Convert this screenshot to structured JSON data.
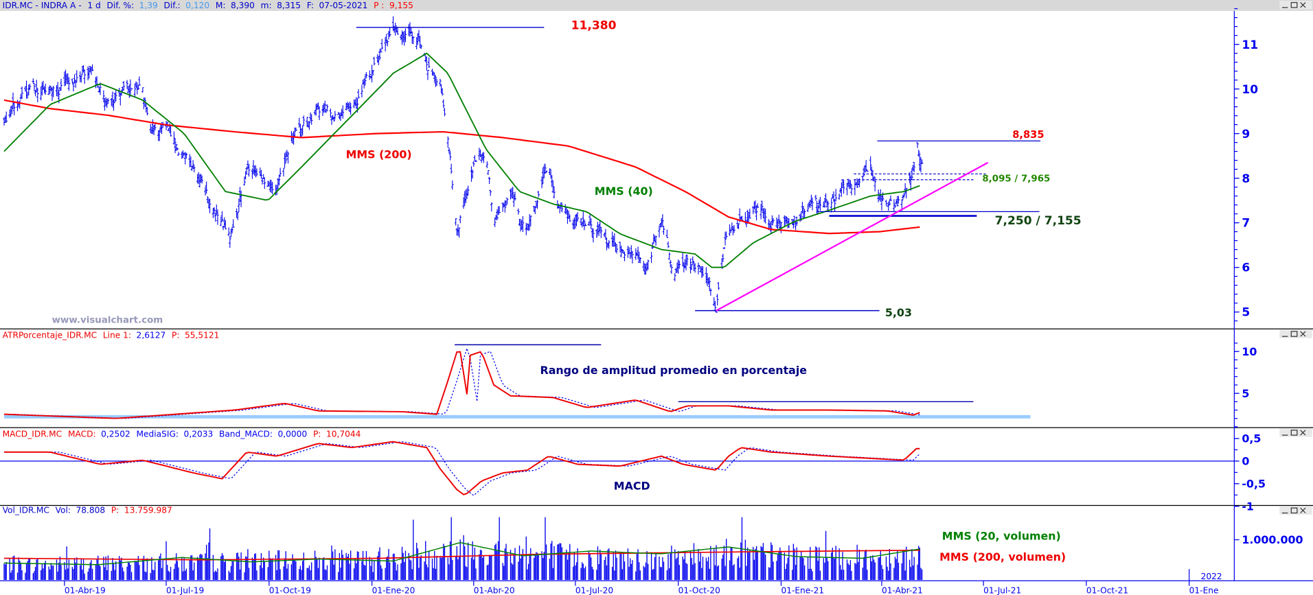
{
  "header": {
    "symbol": "IDR.MC - INDRA A -",
    "period": "1 d",
    "dif_pct_label": "Dif. %:",
    "dif_pct": "1,39",
    "dif_label": "Dif.:",
    "dif": "0,120",
    "max_label": "M:",
    "max": "8,390",
    "min_label": "m:",
    "min": "8,315",
    "date_label": "F:",
    "date": "07-05-2021",
    "p_label": "P :",
    "p": "9,155"
  },
  "watermark": "www.visualchart.com",
  "window_buttons": {
    "minimize": "minimize-icon",
    "maximize": "maximize-icon",
    "close": "close-icon"
  },
  "colors": {
    "price": "#0000ee",
    "mms200": "#ff0000",
    "mms40": "#008000",
    "trend": "#ff00ff",
    "band": "#99ccff"
  },
  "chart_data": [
    {
      "type": "line",
      "title": "IDR.MC - INDRA A",
      "ylim": [
        4.8,
        11.7
      ],
      "yticks": [
        "5",
        "6",
        "7",
        "8",
        "9",
        "10",
        "11"
      ],
      "price_series": [
        [
          "2019-02-06",
          9.2
        ],
        [
          "2019-03-04",
          10.0
        ],
        [
          "2019-03-27",
          9.9
        ],
        [
          "2019-04-26",
          10.5
        ],
        [
          "2019-05-07",
          9.9
        ],
        [
          "2019-06-10",
          9.9
        ],
        [
          "2019-06-17",
          8.9
        ],
        [
          "2019-07-02",
          9.0
        ],
        [
          "2019-07-25",
          8.25
        ],
        [
          "2019-08-12",
          7.1
        ],
        [
          "2019-08-27",
          6.75
        ],
        [
          "2019-09-11",
          8.2
        ],
        [
          "2019-10-08",
          7.7
        ],
        [
          "2019-10-22",
          8.85
        ],
        [
          "2019-11-14",
          9.55
        ],
        [
          "2019-12-06",
          9.35
        ],
        [
          "2019-12-29",
          10.3
        ],
        [
          "2020-01-20",
          11.25
        ],
        [
          "2020-02-12",
          11.2
        ],
        [
          "2020-02-19",
          10.5
        ],
        [
          "2020-03-02",
          10.3
        ],
        [
          "2020-03-09",
          8.8
        ],
        [
          "2020-03-17",
          6.95
        ],
        [
          "2020-04-01",
          8.25
        ],
        [
          "2020-04-12",
          8.6
        ],
        [
          "2020-04-19",
          6.9
        ],
        [
          "2020-05-04",
          7.65
        ],
        [
          "2020-05-19",
          6.7
        ],
        [
          "2020-06-07",
          8.2
        ],
        [
          "2020-06-14",
          7.5
        ],
        [
          "2020-07-03",
          7.1
        ],
        [
          "2020-07-26",
          6.7
        ],
        [
          "2020-08-17",
          6.3
        ],
        [
          "2020-09-01",
          6.0
        ],
        [
          "2020-09-16",
          6.95
        ],
        [
          "2020-09-27",
          6.0
        ],
        [
          "2020-10-16",
          6.2
        ],
        [
          "2020-10-27",
          5.65
        ],
        [
          "2020-11-04",
          5.05
        ],
        [
          "2020-11-13",
          6.6
        ],
        [
          "2020-11-22",
          7.0
        ],
        [
          "2020-12-11",
          7.25
        ],
        [
          "2020-12-30",
          6.95
        ],
        [
          "2021-01-21",
          7.35
        ],
        [
          "2021-02-13",
          7.55
        ],
        [
          "2021-02-28",
          7.65
        ],
        [
          "2021-03-22",
          8.1
        ],
        [
          "2021-04-03",
          7.5
        ],
        [
          "2021-04-21",
          7.5
        ],
        [
          "2021-04-29",
          8.05
        ],
        [
          "2021-05-03",
          8.8
        ],
        [
          "2021-05-07",
          8.39
        ]
      ],
      "mms40": {
        "label": "MMS (40)",
        "points": [
          [
            "2019-02-06",
            8.6
          ],
          [
            "2019-03-19",
            9.65
          ],
          [
            "2019-05-03",
            10.12
          ],
          [
            "2019-06-10",
            9.75
          ],
          [
            "2019-07-17",
            9.0
          ],
          [
            "2019-08-23",
            7.7
          ],
          [
            "2019-09-30",
            7.5
          ],
          [
            "2019-10-30",
            8.25
          ],
          [
            "2019-12-14",
            9.4
          ],
          [
            "2020-01-20",
            10.35
          ],
          [
            "2020-02-19",
            10.8
          ],
          [
            "2020-03-09",
            10.35
          ],
          [
            "2020-03-28",
            9.4
          ],
          [
            "2020-04-12",
            8.65
          ],
          [
            "2020-05-12",
            7.7
          ],
          [
            "2020-06-11",
            7.42
          ],
          [
            "2020-07-11",
            7.25
          ],
          [
            "2020-08-10",
            6.75
          ],
          [
            "2020-09-16",
            6.4
          ],
          [
            "2020-10-16",
            6.3
          ],
          [
            "2020-10-31",
            6.0
          ],
          [
            "2020-11-11",
            6.0
          ],
          [
            "2020-12-07",
            6.55
          ],
          [
            "2021-01-13",
            7.03
          ],
          [
            "2021-02-13",
            7.28
          ],
          [
            "2021-03-22",
            7.6
          ],
          [
            "2021-04-21",
            7.7
          ],
          [
            "2021-05-07",
            7.85
          ]
        ]
      },
      "mms200": {
        "label": "MMS (200)",
        "points": [
          [
            "2019-02-06",
            9.75
          ],
          [
            "2019-03-19",
            9.56
          ],
          [
            "2019-05-10",
            9.41
          ],
          [
            "2019-07-02",
            9.19
          ],
          [
            "2019-08-31",
            9.04
          ],
          [
            "2019-10-30",
            8.91
          ],
          [
            "2020-01-05",
            9.0
          ],
          [
            "2020-03-05",
            9.04
          ],
          [
            "2020-04-27",
            8.91
          ],
          [
            "2020-06-25",
            8.72
          ],
          [
            "2020-08-24",
            8.25
          ],
          [
            "2020-10-08",
            7.69
          ],
          [
            "2020-11-15",
            7.13
          ],
          [
            "2020-12-23",
            6.85
          ],
          [
            "2021-02-13",
            6.76
          ],
          [
            "2021-03-30",
            6.8
          ],
          [
            "2021-05-07",
            6.91
          ]
        ]
      },
      "annotations": {
        "high": {
          "label": "11,380",
          "value": 11.38,
          "from": "2019-12-18",
          "to": "2020-06-03"
        },
        "resistance": {
          "label": "8,835",
          "value": 8.835,
          "from": "2021-03-28",
          "to": "2021-08-21"
        },
        "gap": {
          "label": "8,095 / 7,965",
          "upper": 8.095,
          "lower": 7.965,
          "from": "2021-03-07",
          "upper_to": "2021-07-03",
          "lower_to": "2021-06-22"
        },
        "support": {
          "label": "7,250 / 7,155",
          "upper": 7.25,
          "lower": 7.155,
          "upper_from": "2021-02-02",
          "upper_to": "2021-08-20",
          "lower_from": "2021-02-13",
          "lower_to": "2021-06-25"
        },
        "low": {
          "label": "5,03",
          "value": 5.03,
          "from": "2020-10-16",
          "to": "2021-03-30"
        },
        "trendline": {
          "from": [
            "2020-11-04",
            5.03
          ],
          "to": [
            "2021-07-05",
            8.35
          ]
        }
      }
    },
    {
      "type": "line",
      "title": "ATRPorcentaje_IDR.MC",
      "header": {
        "name": "ATRPorcentaje_IDR.MC",
        "line_label": "Line 1:",
        "line_value": "2,6127",
        "p_label": "P:",
        "p_value": "55,5121"
      },
      "annotation_text": "Rango de amplitud promedio en porcentaje",
      "yticks": [
        "5",
        "10"
      ],
      "series": [
        [
          "2019-02-06",
          2.5
        ],
        [
          "2019-05-17",
          2.0
        ],
        [
          "2019-08-31",
          3.0
        ],
        [
          "2019-10-15",
          3.8
        ],
        [
          "2019-11-14",
          2.9
        ],
        [
          "2020-01-28",
          2.8
        ],
        [
          "2020-02-28",
          2.5
        ],
        [
          "2020-03-28",
          3.2
        ],
        [
          "2020-03-09",
          6.5
        ],
        [
          "2020-03-19",
          10.8
        ],
        [
          "2020-03-28",
          9.5
        ],
        [
          "2020-04-08",
          10.0
        ],
        [
          "2020-04-19",
          6.0
        ],
        [
          "2020-05-04",
          4.7
        ],
        [
          "2020-06-11",
          4.5
        ],
        [
          "2020-07-11",
          3.3
        ],
        [
          "2020-08-24",
          4.2
        ],
        [
          "2020-09-24",
          2.8
        ],
        [
          "2020-10-09",
          3.5
        ],
        [
          "2020-11-15",
          3.5
        ],
        [
          "2020-12-23",
          3.0
        ],
        [
          "2021-02-13",
          3.0
        ],
        [
          "2021-04-06",
          2.9
        ],
        [
          "2021-04-29",
          2.4
        ],
        [
          "2021-05-07",
          2.8
        ]
      ],
      "lines": {
        "peak": {
          "value": 10.8,
          "from": "2020-03-15",
          "to": "2020-07-24"
        },
        "range": {
          "value": 4.0,
          "from": "2020-10-01",
          "to": "2021-06-22"
        },
        "floor": {
          "value": 2.2,
          "from": "2019-02-06",
          "to": "2021-08-12"
        }
      }
    },
    {
      "type": "line",
      "title": "MACD_IDR.MC",
      "header": {
        "name": "MACD_IDR.MC",
        "macd_label": "MACD:",
        "macd_value": "0,2502",
        "sig_label": "MediaSIG:",
        "sig_value": "0,2033",
        "band_label": "Band_MACD:",
        "band_value": "0,0000",
        "p_label": "P:",
        "p_value": "10,7044"
      },
      "annotation_text": "MACD",
      "yticks": [
        "0,5",
        "0",
        "-0,5",
        "-1"
      ],
      "series": [
        [
          "2019-02-06",
          0.2
        ],
        [
          "2019-03-19",
          0.2
        ],
        [
          "2019-05-03",
          -0.07
        ],
        [
          "2019-06-10",
          0.02
        ],
        [
          "2019-07-25",
          -0.26
        ],
        [
          "2019-08-20",
          -0.39
        ],
        [
          "2019-09-11",
          0.2
        ],
        [
          "2019-10-08",
          0.11
        ],
        [
          "2019-11-14",
          0.39
        ],
        [
          "2019-12-14",
          0.3
        ],
        [
          "2020-01-20",
          0.43
        ],
        [
          "2020-02-19",
          0.3
        ],
        [
          "2020-03-02",
          -0.17
        ],
        [
          "2020-03-17",
          -0.63
        ],
        [
          "2020-03-24",
          -0.76
        ],
        [
          "2020-04-08",
          -0.44
        ],
        [
          "2020-04-27",
          -0.26
        ],
        [
          "2020-05-19",
          -0.2
        ],
        [
          "2020-06-07",
          0.11
        ],
        [
          "2020-07-03",
          -0.07
        ],
        [
          "2020-08-10",
          -0.11
        ],
        [
          "2020-09-16",
          0.11
        ],
        [
          "2020-10-05",
          -0.07
        ],
        [
          "2020-11-04",
          -0.2
        ],
        [
          "2020-11-15",
          0.11
        ],
        [
          "2020-11-26",
          0.3
        ],
        [
          "2020-12-23",
          0.2
        ],
        [
          "2021-02-13",
          0.11
        ],
        [
          "2021-03-30",
          0.05
        ],
        [
          "2021-04-21",
          0.02
        ],
        [
          "2021-05-03",
          0.3
        ],
        [
          "2021-05-07",
          0.25
        ]
      ]
    },
    {
      "type": "bar",
      "title": "Vol_IDR.MC",
      "header": {
        "name": "Vol_IDR.MC",
        "vol_label": "Vol:",
        "vol_value": "78.808",
        "p_label": "P:",
        "p_value": "13.759.987"
      },
      "yticks": [
        "1.000.000"
      ],
      "volume_profile": [
        [
          "2019-02-06",
          420000
        ],
        [
          "2019-06-01",
          460000
        ],
        [
          "2019-09-15",
          520000
        ],
        [
          "2020-01-10",
          560000
        ],
        [
          "2020-03-15",
          850000
        ],
        [
          "2020-06-15",
          680000
        ],
        [
          "2020-09-15",
          580000
        ],
        [
          "2020-11-10",
          760000
        ],
        [
          "2021-02-10",
          600000
        ],
        [
          "2021-05-07",
          680000
        ]
      ],
      "mms20": {
        "label": "MMS (20, volumen)",
        "points": [
          [
            "2019-02-06",
            420000
          ],
          [
            "2019-05-01",
            380000
          ],
          [
            "2019-07-15",
            560000
          ],
          [
            "2019-09-15",
            450000
          ],
          [
            "2019-11-15",
            520000
          ],
          [
            "2020-01-20",
            470000
          ],
          [
            "2020-03-20",
            930000
          ],
          [
            "2020-05-15",
            600000
          ],
          [
            "2020-07-15",
            720000
          ],
          [
            "2020-09-15",
            650000
          ],
          [
            "2020-11-15",
            820000
          ],
          [
            "2021-01-15",
            580000
          ],
          [
            "2021-03-15",
            540000
          ],
          [
            "2021-05-07",
            780000
          ]
        ]
      },
      "mms200": {
        "label": "MMS (200, volumen)",
        "points": [
          [
            "2019-02-06",
            540000
          ],
          [
            "2019-08-01",
            500000
          ],
          [
            "2020-01-10",
            540000
          ],
          [
            "2020-06-01",
            640000
          ],
          [
            "2020-12-01",
            700000
          ],
          [
            "2021-05-07",
            740000
          ]
        ]
      }
    },
    {
      "type": "axis",
      "x_ticks": [
        [
          "2019-04-01",
          "01-Abr-19"
        ],
        [
          "2019-07-01",
          "01-Jul-19"
        ],
        [
          "2019-10-01",
          "01-Oct-19"
        ],
        [
          "2020-01-01",
          "01-Ene-20"
        ],
        [
          "2020-04-01",
          "01-Abr-20"
        ],
        [
          "2020-07-01",
          "01-Jul-20"
        ],
        [
          "2020-10-01",
          "01-Oct-20"
        ],
        [
          "2021-01-01",
          "01-Ene-21"
        ],
        [
          "2021-04-01",
          "01-Abr-21"
        ],
        [
          "2021-07-01",
          "01-Jul-21"
        ],
        [
          "2021-10-01",
          "01-Oct-21"
        ],
        [
          "2022-01-01",
          "01-Ene"
        ]
      ],
      "year_marker": "2022"
    }
  ]
}
